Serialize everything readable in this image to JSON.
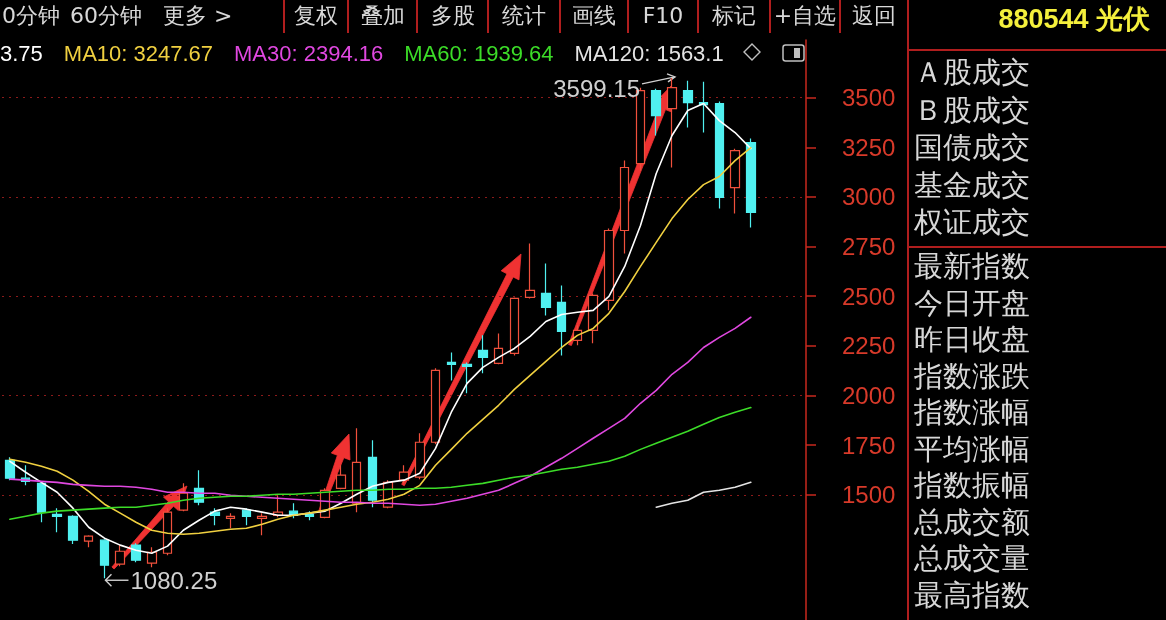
{
  "chart_data": {
    "type": "candlestick",
    "title": "880544 光伏",
    "categories": [
      null,
      null,
      null,
      null,
      null,
      null,
      null,
      null,
      null,
      null,
      null,
      null,
      null,
      null,
      null,
      null,
      null,
      null,
      null,
      null,
      null,
      null,
      null,
      null,
      null,
      null,
      null,
      null,
      null,
      null,
      null,
      null,
      null,
      null,
      null,
      null,
      null,
      null,
      null,
      null,
      null,
      null,
      null,
      null,
      null,
      null,
      null,
      null
    ],
    "ohlc": [
      [
        1674,
        1689,
        1574,
        1584
      ],
      [
        1584,
        1649,
        1548,
        1568
      ],
      [
        1558,
        1568,
        1362,
        1413
      ],
      [
        1402,
        1433,
        1312,
        1392
      ],
      [
        1392,
        1397,
        1252,
        1272
      ],
      [
        1267,
        1297,
        1236,
        1292
      ],
      [
        1272,
        1277,
        1080.25,
        1146
      ],
      [
        1151,
        1247,
        1141,
        1216
      ],
      [
        1247,
        1257,
        1161,
        1171
      ],
      [
        1156,
        1236,
        1136,
        1211
      ],
      [
        1206,
        1433,
        1196,
        1413
      ],
      [
        1423,
        1558,
        1418,
        1508
      ],
      [
        1533,
        1624,
        1448,
        1463
      ],
      [
        1413,
        1433,
        1347,
        1397
      ],
      [
        1382,
        1407,
        1332,
        1392
      ],
      [
        1423,
        1433,
        1347,
        1392
      ],
      [
        1382,
        1407,
        1297,
        1392
      ],
      [
        1397,
        1498,
        1387,
        1413
      ],
      [
        1418,
        1458,
        1382,
        1397
      ],
      [
        1402,
        1418,
        1372,
        1392
      ],
      [
        1387,
        1533,
        1382,
        1523
      ],
      [
        1533,
        1649,
        1528,
        1599
      ],
      [
        1458,
        1835,
        1413,
        1664
      ],
      [
        1689,
        1775,
        1438,
        1473
      ],
      [
        1438,
        1574,
        1433,
        1563
      ],
      [
        1574,
        1649,
        1558,
        1614
      ],
      [
        1589,
        1810,
        1579,
        1765
      ],
      [
        1765,
        2137,
        1755,
        2127
      ],
      [
        2167,
        2217,
        2076,
        2157
      ],
      [
        2157,
        2167,
        2011,
        2147
      ],
      [
        2227,
        2303,
        2112,
        2192
      ],
      [
        2162,
        2313,
        2157,
        2237
      ],
      [
        2212,
        2494,
        2202,
        2489
      ],
      [
        2494,
        2766,
        2489,
        2529
      ],
      [
        2514,
        2665,
        2403,
        2444
      ],
      [
        2469,
        2554,
        2202,
        2323
      ],
      [
        2278,
        2353,
        2253,
        2328
      ],
      [
        2328,
        2514,
        2263,
        2504
      ],
      [
        2479,
        2841,
        2429,
        2831
      ],
      [
        2831,
        3183,
        2715,
        3148
      ],
      [
        3168,
        3550,
        3133,
        3535
      ],
      [
        3535,
        3545,
        3309,
        3409
      ],
      [
        3445,
        3599.15,
        3148,
        3550
      ],
      [
        3535,
        3585,
        3349,
        3475
      ],
      [
        3475,
        3580,
        3324,
        3465
      ],
      [
        3470,
        3480,
        2942,
        2997
      ],
      [
        3047,
        3243,
        2917,
        3233
      ],
      [
        3274,
        3294,
        2846,
        2922
      ]
    ],
    "colors": [
      "#50f0f0",
      "#50f0f0",
      "#50f0f0",
      "#50f0f0",
      "#50f0f0",
      "#f0503c",
      "#50f0f0",
      "#f0503c",
      "#50f0f0",
      "#f0503c",
      "#f0503c",
      "#f0503c",
      "#50f0f0",
      "#50f0f0",
      "#f0503c",
      "#50f0f0",
      "#f0503c",
      "#f0503c",
      "#50f0f0",
      "#50f0f0",
      "#f0503c",
      "#f0503c",
      "#f0503c",
      "#50f0f0",
      "#f0503c",
      "#f0503c",
      "#f0503c",
      "#f0503c",
      "#50f0f0",
      "#50f0f0",
      "#50f0f0",
      "#f0503c",
      "#f0503c",
      "#f0503c",
      "#50f0f0",
      "#50f0f0",
      "#f0503c",
      "#f0503c",
      "#f0503c",
      "#f0503c",
      "#f0503c",
      "#50f0f0",
      "#f0503c",
      "#50f0f0",
      "#50f0f0",
      "#50f0f0",
      "#f0503c",
      "#50f0f0"
    ],
    "series": [
      {
        "type": "line",
        "name": "3.75",
        "color": "#ffffff",
        "values": [
          1669,
          1614,
          1563,
          1513,
          1433,
          1337,
          1282,
          1247,
          1221,
          1206,
          1242,
          1322,
          1372,
          1418,
          1438,
          1428,
          1413,
          1397,
          1397,
          1408,
          1418,
          1458,
          1503,
          1543,
          1563,
          1574,
          1609,
          1734,
          1916,
          2061,
          2142,
          2192,
          2237,
          2298,
          2373,
          2408,
          2419,
          2429,
          2499,
          2650,
          2856,
          3118,
          3309,
          3435,
          3470,
          3384,
          3324,
          3243
        ]
      },
      {
        "type": "line",
        "name": "MA10: 3247.67",
        "color": "#f0d040",
        "values": [
          1679,
          1664,
          1644,
          1619,
          1574,
          1518,
          1453,
          1408,
          1362,
          1322,
          1307,
          1302,
          1307,
          1317,
          1327,
          1332,
          1352,
          1377,
          1397,
          1408,
          1423,
          1438,
          1453,
          1463,
          1478,
          1503,
          1548,
          1649,
          1729,
          1810,
          1880,
          1951,
          2031,
          2102,
          2172,
          2242,
          2303,
          2338,
          2414,
          2524,
          2650,
          2771,
          2891,
          2987,
          3062,
          3103,
          3183,
          3247.67
        ]
      },
      {
        "type": "line",
        "name": "MA30: 2394.16",
        "color": "#e048e0",
        "values": [
          1579,
          1574,
          1568,
          1563,
          1553,
          1548,
          1543,
          1543,
          1538,
          1528,
          1513,
          1513,
          1508,
          1508,
          1498,
          1493,
          1488,
          1483,
          1478,
          1473,
          1468,
          1463,
          1463,
          1458,
          1458,
          1453,
          1448,
          1453,
          1468,
          1483,
          1503,
          1523,
          1558,
          1594,
          1639,
          1684,
          1734,
          1785,
          1835,
          1885,
          1961,
          2026,
          2107,
          2167,
          2242,
          2293,
          2338,
          2394.16
        ]
      },
      {
        "type": "line",
        "name": "MA60: 1939.64",
        "color": "#3cdc28",
        "values": [
          1377,
          1392,
          1408,
          1418,
          1423,
          1428,
          1433,
          1438,
          1438,
          1448,
          1458,
          1473,
          1483,
          1488,
          1493,
          1493,
          1498,
          1503,
          1503,
          1508,
          1513,
          1518,
          1523,
          1523,
          1528,
          1528,
          1533,
          1533,
          1538,
          1548,
          1558,
          1574,
          1589,
          1599,
          1614,
          1629,
          1639,
          1654,
          1669,
          1694,
          1729,
          1760,
          1790,
          1820,
          1855,
          1890,
          1916,
          1939.64
        ]
      },
      {
        "type": "line",
        "name": "MA120: 1563.1",
        "color": "#e4e4e4",
        "values": [
          null,
          null,
          null,
          null,
          null,
          null,
          null,
          null,
          null,
          null,
          null,
          null,
          null,
          null,
          null,
          null,
          null,
          null,
          null,
          null,
          null,
          null,
          null,
          null,
          null,
          null,
          null,
          null,
          null,
          null,
          null,
          null,
          null,
          null,
          null,
          null,
          null,
          null,
          null,
          null,
          null,
          1438,
          1458,
          1473,
          1513,
          1523,
          1538,
          1563.1
        ]
      }
    ],
    "ylim": [
      870,
      3790
    ],
    "yticks": [
      1500,
      1750,
      2000,
      2250,
      2500,
      2750,
      3000,
      3250,
      3500
    ],
    "grid": "y",
    "legend": "top left",
    "tick_labels": "y",
    "marker": "none",
    "annotations": [
      "0分钟",
      "60分钟",
      "更多 >",
      "复权",
      "叠加",
      "多股",
      "统计",
      "画线",
      "F10",
      "标记",
      "+自选",
      "返回",
      "Ａ股成交",
      "Ｂ股成交",
      "国债成交",
      "基金成交",
      "权证成交",
      "最新指数",
      "今日开盘",
      "昨日收盘",
      "指数涨跌",
      "指数涨幅",
      "平均涨幅",
      "指数振幅",
      "总成交额",
      "总成交量",
      "最高指数",
      "1080.25",
      "3599.15"
    ]
  }
}
